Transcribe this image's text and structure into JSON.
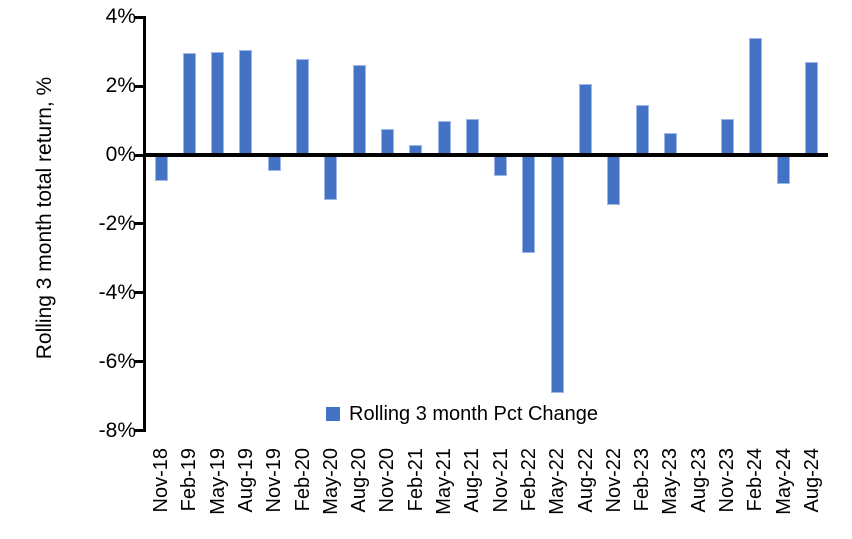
{
  "chart_data": {
    "type": "bar",
    "title": "",
    "ylabel": "Rolling 3 month total return, %",
    "xlabel": "",
    "categories": [
      "Nov-18",
      "Feb-19",
      "May-19",
      "Aug-19",
      "Nov-19",
      "Feb-20",
      "May-20",
      "Aug-20",
      "Nov-20",
      "Feb-21",
      "May-21",
      "Aug-21",
      "Nov-21",
      "Feb-22",
      "May-22",
      "Aug-22",
      "Nov-22",
      "Feb-23",
      "May-23",
      "Aug-23",
      "Nov-23",
      "Feb-24",
      "May-24",
      "Aug-24"
    ],
    "values": [
      -0.75,
      2.95,
      3.0,
      3.05,
      -0.45,
      2.8,
      -1.3,
      2.6,
      0.75,
      0.3,
      1.0,
      1.05,
      -0.6,
      -2.85,
      -6.9,
      2.05,
      -1.45,
      1.45,
      0.65,
      0.0,
      1.05,
      3.4,
      -0.85,
      2.7
    ],
    "series_name": "Rolling 3 month Pct Change",
    "ylim": [
      -8,
      4
    ],
    "ytick_step": 2,
    "yticks": [
      4,
      2,
      0,
      -2,
      -4,
      -6,
      -8
    ],
    "ytick_labels": [
      "4%",
      "2%",
      "0%",
      "-2%",
      "-4%",
      "-6%",
      "-8%"
    ],
    "grid": "off",
    "legend_position": "bottom-center",
    "legend": {
      "label": "Rolling 3 month Pct Change"
    },
    "colors": {
      "bar_fill": "#4472C4",
      "bar_edge": "#9DB8E4",
      "axis": "#000000",
      "text": "#000000",
      "background": "#FFFFFF"
    }
  }
}
